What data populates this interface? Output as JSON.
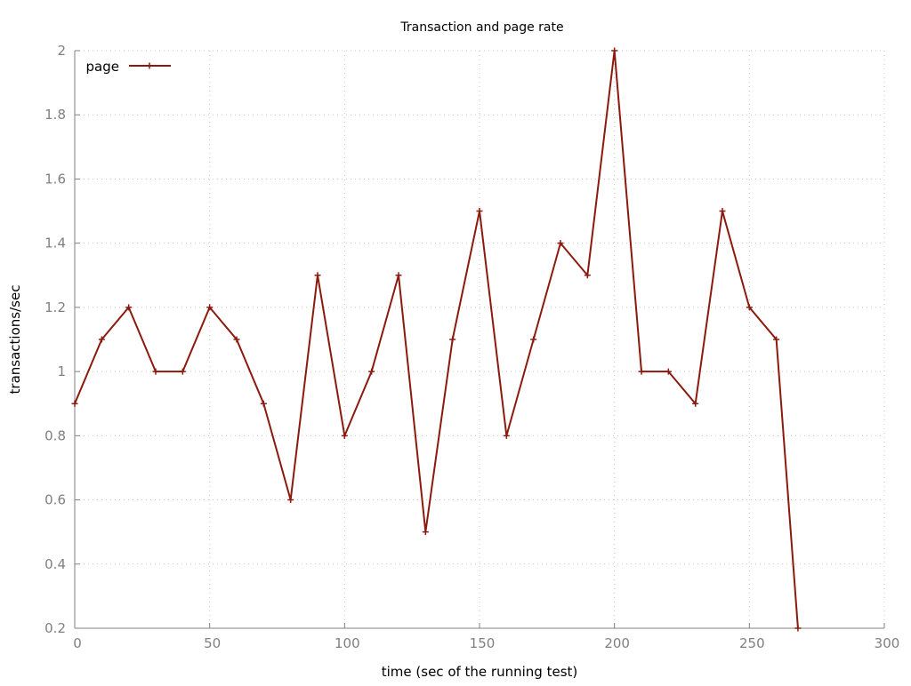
{
  "chart_data": {
    "type": "line",
    "title": "Transaction and page rate",
    "xlabel": "time (sec of the running test)",
    "ylabel": "transactions/sec",
    "xlim": [
      0,
      300
    ],
    "ylim": [
      0.2,
      2
    ],
    "xticks": [
      0,
      50,
      100,
      150,
      200,
      250,
      300
    ],
    "yticks": [
      0.2,
      0.4,
      0.6,
      0.8,
      1,
      1.2,
      1.4,
      1.6,
      1.8,
      2
    ],
    "ytick_labels": [
      "0.2",
      "0.4",
      "0.6",
      "0.8",
      "1",
      "1.2",
      "1.4",
      "1.6",
      "1.8",
      "2"
    ],
    "grid": true,
    "legend": "top-left",
    "series": [
      {
        "name": "page",
        "color": "#8b1a0e",
        "marker": "plus",
        "x": [
          0,
          10,
          20,
          30,
          40,
          50,
          60,
          70,
          80,
          90,
          100,
          110,
          120,
          130,
          140,
          150,
          160,
          170,
          180,
          190,
          200,
          210,
          220,
          230,
          240,
          250,
          260,
          268
        ],
        "y": [
          0.9,
          1.1,
          1.2,
          1.0,
          1.0,
          1.2,
          1.1,
          0.9,
          0.6,
          1.3,
          0.8,
          1.0,
          1.3,
          0.5,
          1.1,
          1.5,
          0.8,
          1.1,
          1.4,
          1.3,
          2.0,
          1.0,
          1.0,
          0.9,
          1.5,
          1.2,
          1.1,
          0.2
        ]
      }
    ]
  }
}
